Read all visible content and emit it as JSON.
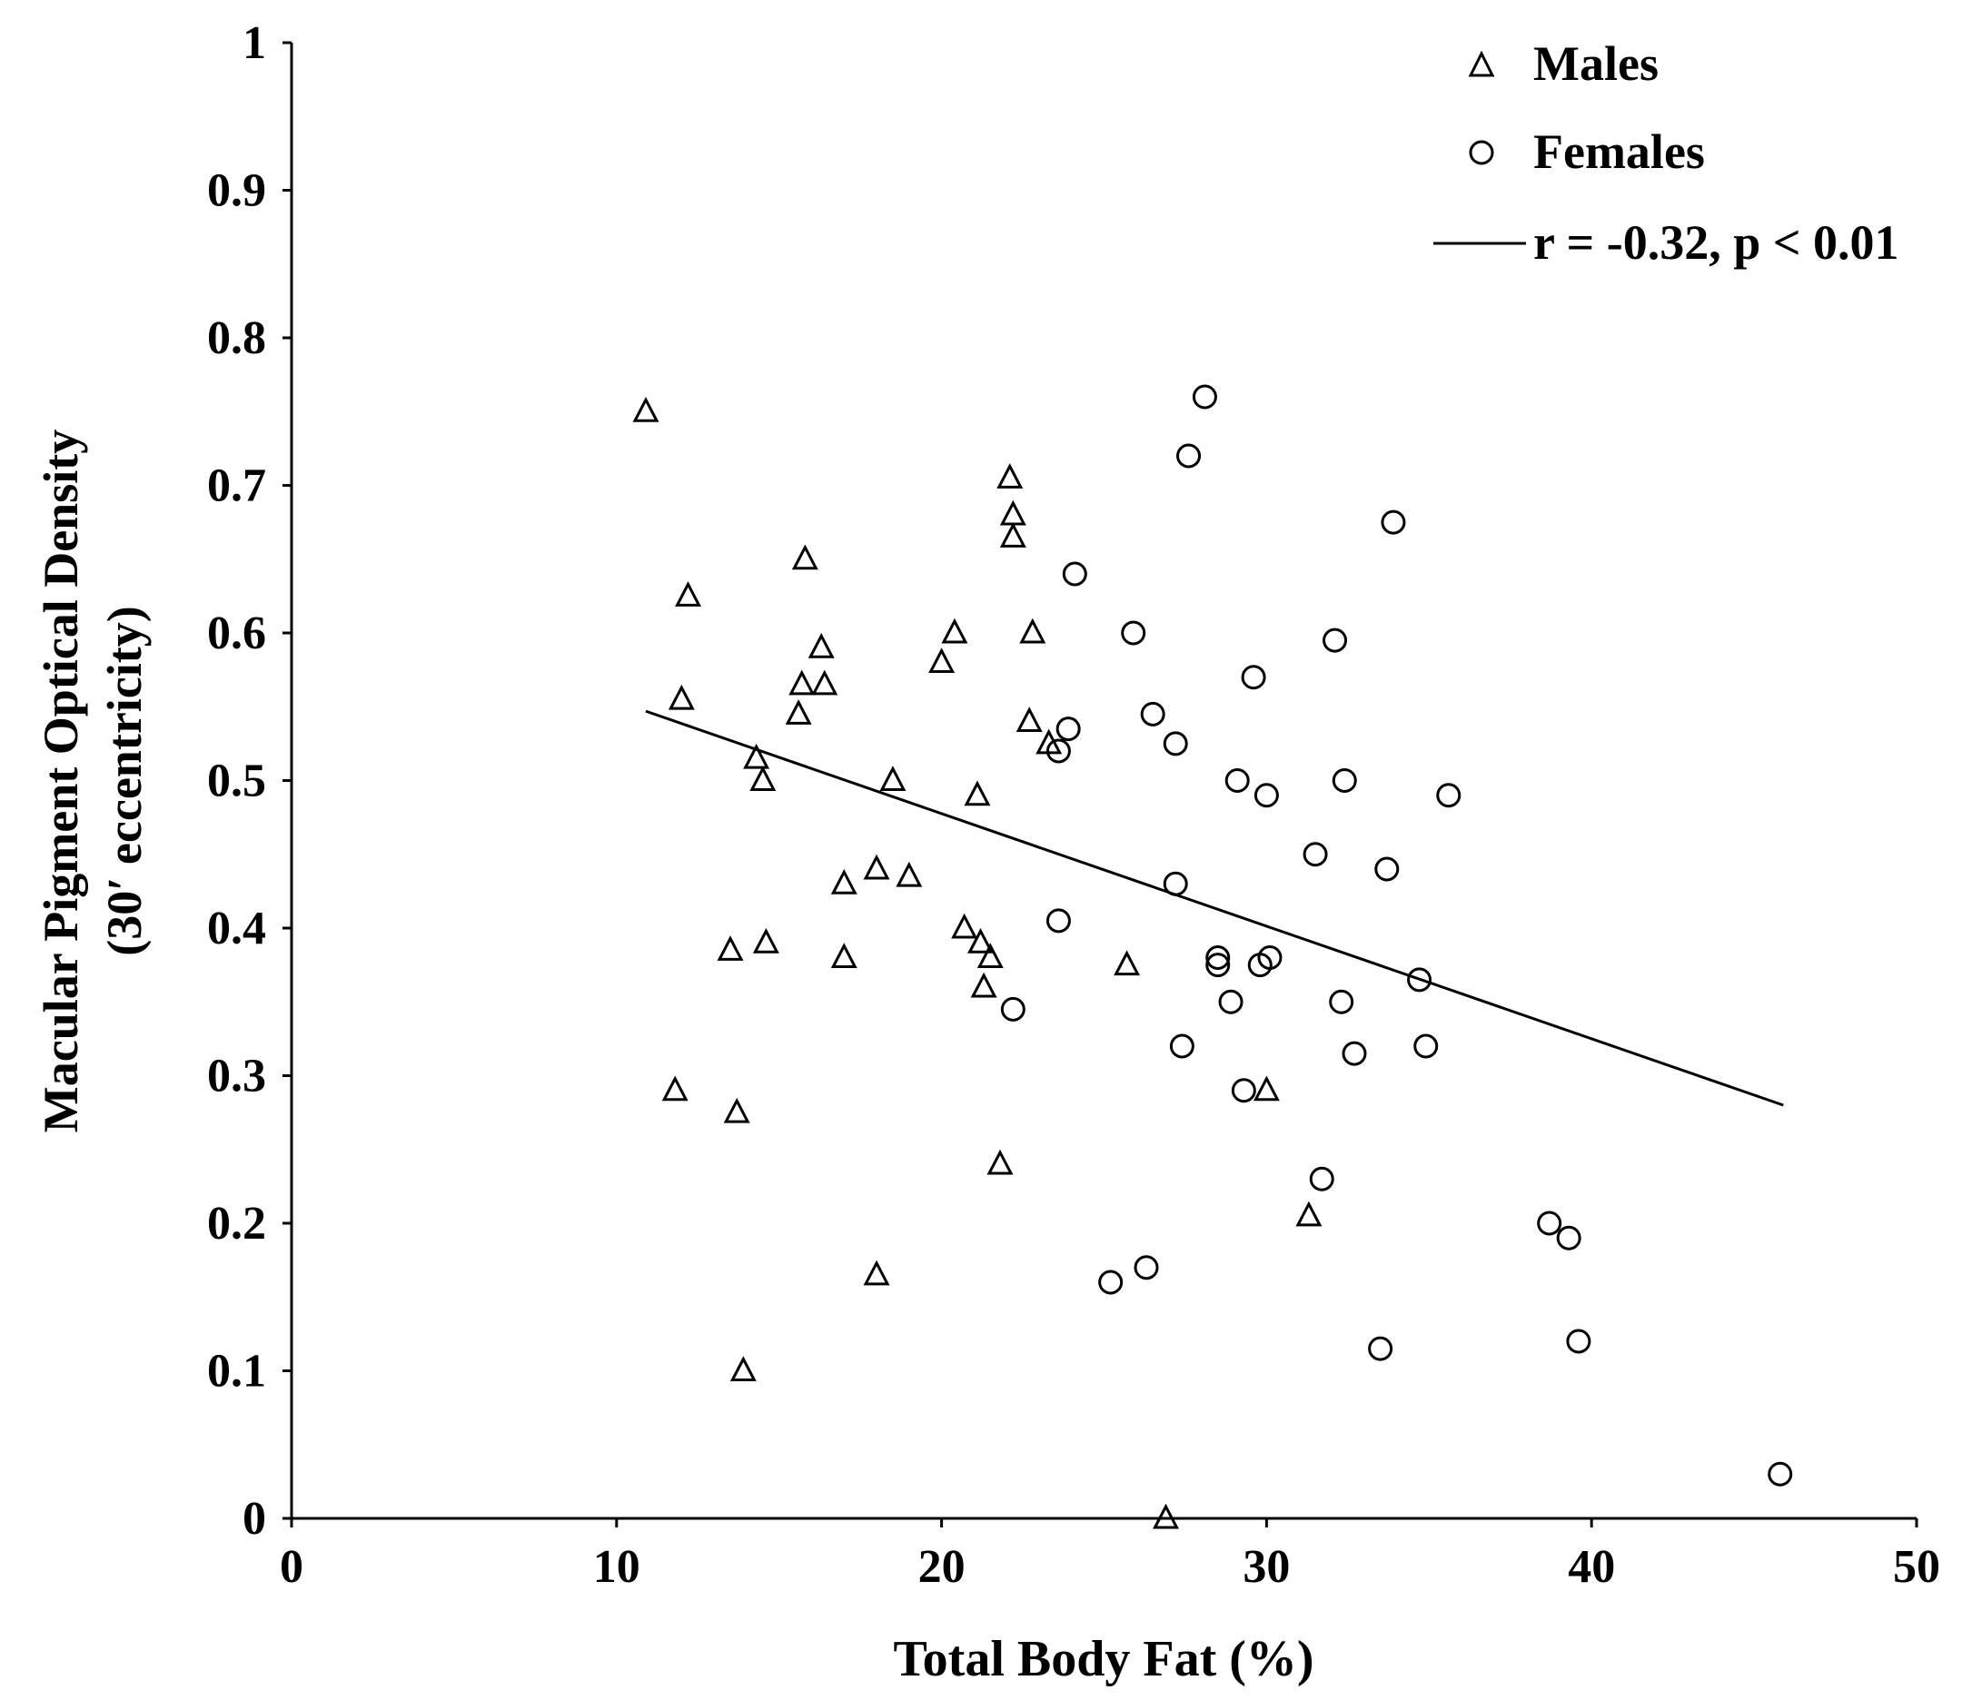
{
  "chart_data": {
    "type": "scatter",
    "title": "",
    "xlabel": "Total Body Fat (%)",
    "ylabel_line1": "Macular Pigment Optical Density",
    "ylabel_line2": "(30′ eccentricity)",
    "xlim": [
      0,
      50
    ],
    "ylim": [
      0,
      1
    ],
    "x_ticks": [
      0,
      10,
      20,
      30,
      40,
      50
    ],
    "x_tick_labels": [
      "0",
      "10",
      "20",
      "30",
      "40",
      "50"
    ],
    "y_ticks": [
      0,
      0.1,
      0.2,
      0.3,
      0.4,
      0.5,
      0.6,
      0.7,
      0.8,
      0.9,
      1
    ],
    "y_tick_labels": [
      "0",
      "0.1",
      "0.2",
      "0.3",
      "0.4",
      "0.5",
      "0.6",
      "0.7",
      "0.8",
      "0.9",
      "1"
    ],
    "grid": false,
    "legend_position": "top-right",
    "series": [
      {
        "name": "Males",
        "marker": "triangle",
        "points": [
          [
            10.9,
            0.75
          ],
          [
            12.0,
            0.555
          ],
          [
            12.2,
            0.625
          ],
          [
            11.8,
            0.29
          ],
          [
            13.5,
            0.385
          ],
          [
            13.7,
            0.275
          ],
          [
            13.9,
            0.1
          ],
          [
            14.3,
            0.515
          ],
          [
            14.5,
            0.5
          ],
          [
            14.6,
            0.39
          ],
          [
            15.6,
            0.545
          ],
          [
            15.7,
            0.565
          ],
          [
            15.8,
            0.65
          ],
          [
            16.3,
            0.59
          ],
          [
            16.4,
            0.565
          ],
          [
            17.0,
            0.43
          ],
          [
            17.0,
            0.38
          ],
          [
            18.0,
            0.44
          ],
          [
            18.0,
            0.165
          ],
          [
            18.5,
            0.5
          ],
          [
            19.0,
            0.435
          ],
          [
            20.0,
            0.58
          ],
          [
            20.4,
            0.6
          ],
          [
            20.7,
            0.4
          ],
          [
            21.1,
            0.49
          ],
          [
            21.2,
            0.39
          ],
          [
            21.3,
            0.36
          ],
          [
            21.5,
            0.38
          ],
          [
            21.8,
            0.24
          ],
          [
            22.1,
            0.705
          ],
          [
            22.2,
            0.68
          ],
          [
            22.2,
            0.665
          ],
          [
            22.7,
            0.54
          ],
          [
            22.8,
            0.6
          ],
          [
            23.3,
            0.525
          ],
          [
            25.7,
            0.375
          ],
          [
            26.9,
            0.0
          ],
          [
            30.0,
            0.29
          ],
          [
            31.3,
            0.205
          ]
        ]
      },
      {
        "name": "Females",
        "marker": "circle",
        "points": [
          [
            22.2,
            0.345
          ],
          [
            23.6,
            0.405
          ],
          [
            23.6,
            0.52
          ],
          [
            23.9,
            0.535
          ],
          [
            24.1,
            0.64
          ],
          [
            25.2,
            0.16
          ],
          [
            25.9,
            0.6
          ],
          [
            26.3,
            0.17
          ],
          [
            26.5,
            0.545
          ],
          [
            27.2,
            0.525
          ],
          [
            27.2,
            0.43
          ],
          [
            27.4,
            0.32
          ],
          [
            27.6,
            0.72
          ],
          [
            28.1,
            0.76
          ],
          [
            28.5,
            0.38
          ],
          [
            28.5,
            0.375
          ],
          [
            28.9,
            0.35
          ],
          [
            29.1,
            0.5
          ],
          [
            29.3,
            0.29
          ],
          [
            29.6,
            0.57
          ],
          [
            29.8,
            0.375
          ],
          [
            30.0,
            0.49
          ],
          [
            30.1,
            0.38
          ],
          [
            31.5,
            0.45
          ],
          [
            31.7,
            0.23
          ],
          [
            32.1,
            0.595
          ],
          [
            32.3,
            0.35
          ],
          [
            32.4,
            0.5
          ],
          [
            32.7,
            0.315
          ],
          [
            33.5,
            0.115
          ],
          [
            33.7,
            0.44
          ],
          [
            33.9,
            0.675
          ],
          [
            34.7,
            0.365
          ],
          [
            34.9,
            0.32
          ],
          [
            35.6,
            0.49
          ],
          [
            38.7,
            0.2
          ],
          [
            39.3,
            0.19
          ],
          [
            39.6,
            0.12
          ],
          [
            45.8,
            0.03
          ]
        ]
      }
    ],
    "trendline": {
      "name": "r = -0.32, p < 0.01",
      "x": [
        10.9,
        45.9
      ],
      "y": [
        0.547,
        0.28
      ]
    }
  }
}
